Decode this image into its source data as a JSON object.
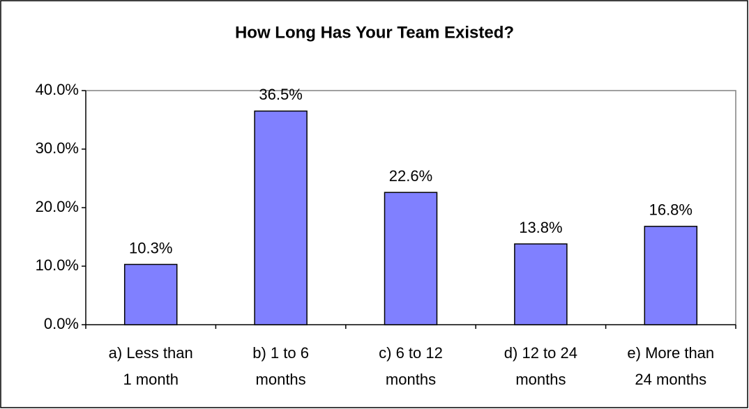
{
  "chart_data": {
    "type": "bar",
    "title": "How Long Has Your Team Existed?",
    "categories": [
      "a) Less than\n1 month",
      "b) 1 to 6\nmonths",
      "c) 6 to 12\nmonths",
      "d) 12 to 24\nmonths",
      "e) More than\n24 months"
    ],
    "values": [
      10.3,
      36.5,
      22.6,
      13.8,
      16.8
    ],
    "value_labels": [
      "10.3%",
      "36.5%",
      "22.6%",
      "13.8%",
      "16.8%"
    ],
    "color": "#8080ff",
    "ylim": [
      0,
      40
    ],
    "yticks": [
      {
        "value": 0,
        "label": "0.0%"
      },
      {
        "value": 10,
        "label": "10.0%"
      },
      {
        "value": 20,
        "label": "20.0%"
      },
      {
        "value": 30,
        "label": "30.0%"
      },
      {
        "value": 40,
        "label": "40.0%"
      }
    ],
    "grid": false
  }
}
